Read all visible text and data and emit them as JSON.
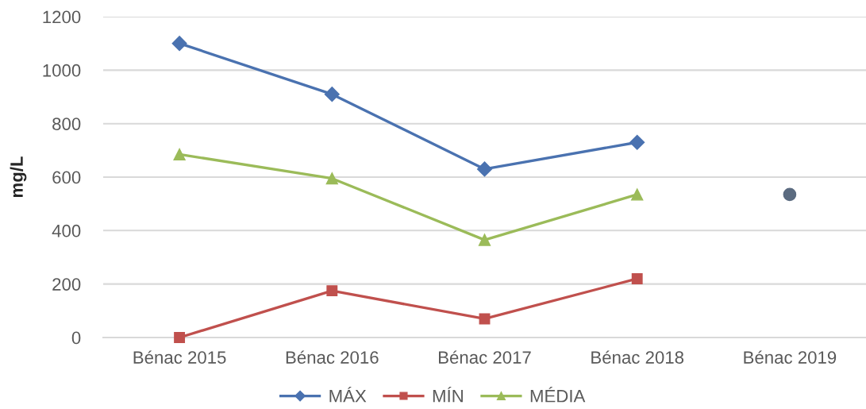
{
  "chart_data": {
    "type": "line",
    "ylabel": "mg/L",
    "categories": [
      "Bénac 2015",
      "Bénac 2016",
      "Bénac 2017",
      "Bénac 2018",
      "Bénac 2019"
    ],
    "series": [
      {
        "name": "MÁX",
        "color": "#4a72b0",
        "marker": "diamond",
        "values": [
          1100,
          910,
          630,
          730,
          null
        ]
      },
      {
        "name": "MÍN",
        "color": "#c0504d",
        "marker": "square",
        "values": [
          0,
          175,
          70,
          220,
          null
        ]
      },
      {
        "name": "MÉDIA",
        "color": "#9bbb59",
        "marker": "triangle",
        "values": [
          685,
          595,
          365,
          535,
          null
        ]
      },
      {
        "type": "scatter",
        "color": "#5b6b80",
        "marker": "circle",
        "values": [
          null,
          null,
          null,
          null,
          535
        ]
      }
    ],
    "ylim": [
      0,
      1200
    ],
    "yticks": [
      0,
      200,
      400,
      600,
      800,
      1000,
      1200
    ],
    "grid": "y",
    "legend": "bottom"
  }
}
